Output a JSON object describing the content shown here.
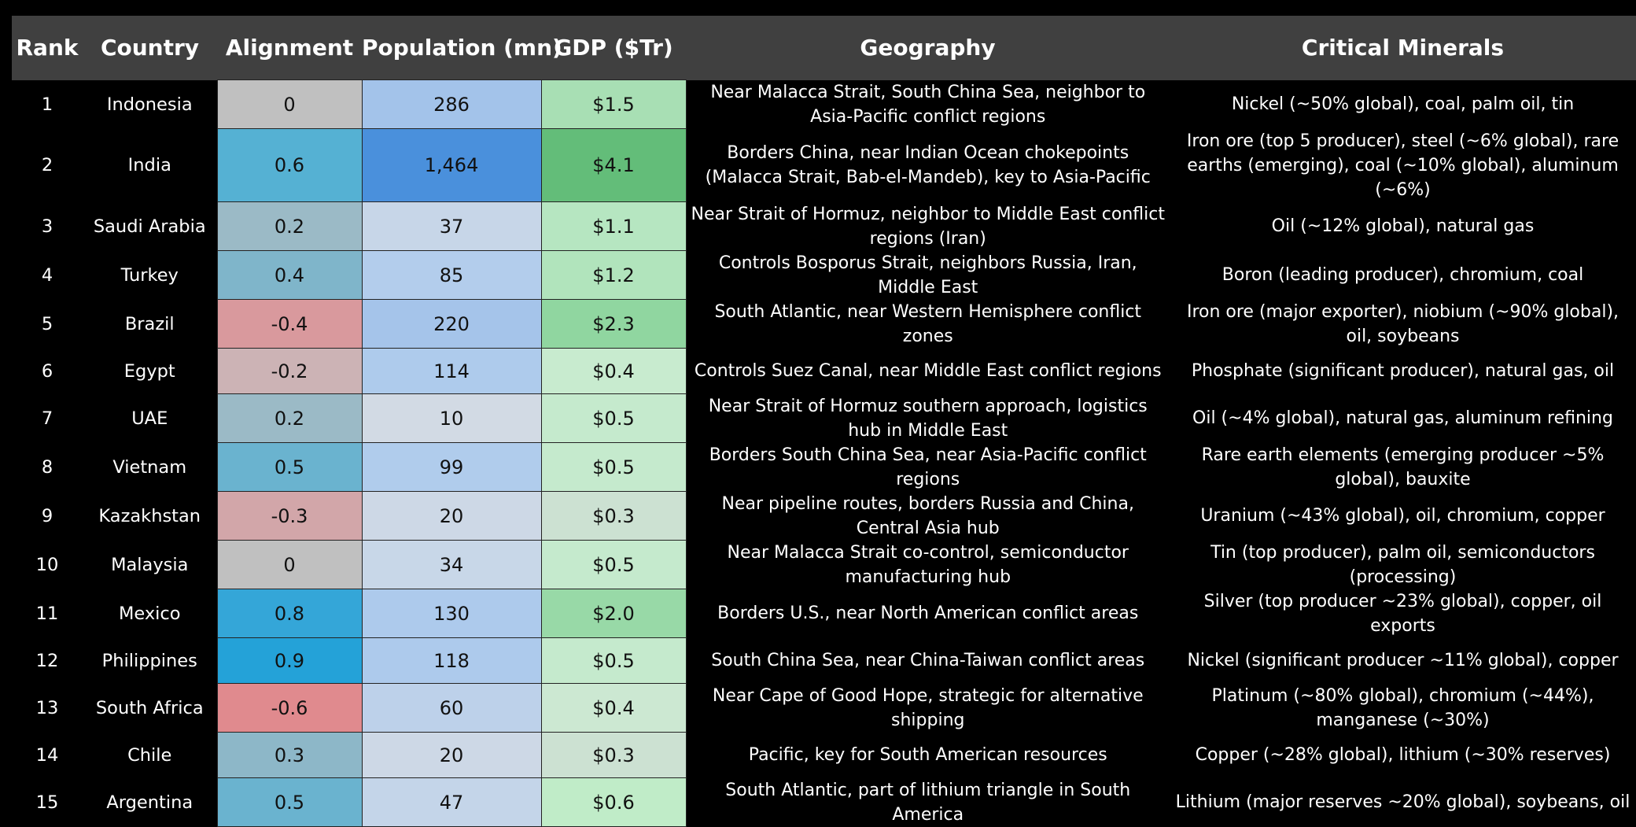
{
  "headers": [
    "Rank",
    "Country",
    "Alignment",
    "Population (mn)",
    "GDP ($Tr)",
    "Geography",
    "Critical Minerals"
  ],
  "rows": [
    {
      "rank": "1",
      "country": "Indonesia",
      "alignment": "0",
      "population": "286",
      "gdp": "$1.5",
      "geography": "Near Malacca Strait, South China Sea, neighbor to Asia-Pacific conflict regions",
      "minerals": "Nickel (~50% global), coal, palm oil, tin",
      "colors": {
        "alignment": "#c0c0c0",
        "population": "#a3c3ea",
        "gdp": "#a8dfb4"
      }
    },
    {
      "rank": "2",
      "country": "India",
      "alignment": "0.6",
      "population": "1,464",
      "gdp": "$4.1",
      "geography": "Borders China, near Indian Ocean chokepoints (Malacca Strait, Bab-el-Mandeb), key to Asia-Pacific",
      "minerals": "Iron ore (top 5 producer), steel (~6% global), rare earths (emerging), coal (~10% global), aluminum (~6%)",
      "colors": {
        "alignment": "#55b1d3",
        "population": "#4a90dc",
        "gdp": "#63bd79"
      }
    },
    {
      "rank": "3",
      "country": "Saudi Arabia",
      "alignment": "0.2",
      "population": "37",
      "gdp": "$1.1",
      "geography": "Near Strait of Hormuz, neighbor to Middle East conflict regions (Iran)",
      "minerals": "Oil (~12% global), natural gas",
      "colors": {
        "alignment": "#9bbac6",
        "population": "#c7d6e8",
        "gdp": "#b6e6c1"
      }
    },
    {
      "rank": "4",
      "country": "Turkey",
      "alignment": "0.4",
      "population": "85",
      "gdp": "$1.2",
      "geography": "Controls Bosporus Strait, neighbors Russia, Iran, Middle East",
      "minerals": "Boron (leading producer), chromium, coal",
      "colors": {
        "alignment": "#7fb5ca",
        "population": "#b3cdec",
        "gdp": "#b1e4bc"
      }
    },
    {
      "rank": "5",
      "country": "Brazil",
      "alignment": "-0.4",
      "population": "220",
      "gdp": "$2.3",
      "geography": "South Atlantic, near Western Hemisphere conflict zones",
      "minerals": "Iron ore (major exporter), niobium (~90% global), oil, soybeans",
      "colors": {
        "alignment": "#d9999d",
        "population": "#a5c4ea",
        "gdp": "#90d6a0"
      }
    },
    {
      "rank": "6",
      "country": "Egypt",
      "alignment": "-0.2",
      "population": "114",
      "gdp": "$0.4",
      "geography": "Controls Suez Canal, near Middle East conflict regions",
      "minerals": "Phosphate (significant producer), natural gas, oil",
      "colors": {
        "alignment": "#ccb3b5",
        "population": "#aecbec",
        "gdp": "#c8ebcf"
      }
    },
    {
      "rank": "7",
      "country": "UAE",
      "alignment": "0.2",
      "population": "10",
      "gdp": "$0.5",
      "geography": "Near Strait of Hormuz southern approach, logistics hub in Middle East",
      "minerals": "Oil (~4% global), natural gas, aluminum refining",
      "colors": {
        "alignment": "#9bbac6",
        "population": "#d2dae4",
        "gdp": "#c5eacd"
      }
    },
    {
      "rank": "8",
      "country": "Vietnam",
      "alignment": "0.5",
      "population": "99",
      "gdp": "$0.5",
      "geography": "Borders South China Sea, near Asia-Pacific conflict regions",
      "minerals": "Rare earth elements (emerging producer ~5% global), bauxite",
      "colors": {
        "alignment": "#6ab3cf",
        "population": "#b0ccec",
        "gdp": "#c5eacd"
      }
    },
    {
      "rank": "9",
      "country": "Kazakhstan",
      "alignment": "-0.3",
      "population": "20",
      "gdp": "$0.3",
      "geography": "Near pipeline routes, borders Russia and China, Central Asia hub",
      "minerals": "Uranium (~43% global), oil, chromium, copper",
      "colors": {
        "alignment": "#d2a6a9",
        "population": "#cdd8e6",
        "gdp": "#cce1d2"
      }
    },
    {
      "rank": "10",
      "country": "Malaysia",
      "alignment": "0",
      "population": "34",
      "gdp": "$0.5",
      "geography": "Near Malacca Strait co-control, semiconductor manufacturing hub",
      "minerals": "Tin (top producer), palm oil, semiconductors (processing)",
      "colors": {
        "alignment": "#c0c0c0",
        "population": "#c8d7e8",
        "gdp": "#c5eacd"
      }
    },
    {
      "rank": "11",
      "country": "Mexico",
      "alignment": "0.8",
      "population": "130",
      "gdp": "$2.0",
      "geography": "Borders U.S., near North American conflict areas",
      "minerals": "Silver (top producer ~23% global), copper, oil exports",
      "colors": {
        "alignment": "#34a6d8",
        "population": "#adcaec",
        "gdp": "#98d9a7"
      }
    },
    {
      "rank": "12",
      "country": "Philippines",
      "alignment": "0.9",
      "population": "118",
      "gdp": "$0.5",
      "geography": "South China Sea, near China-Taiwan conflict areas",
      "minerals": "Nickel (significant producer ~11% global), copper",
      "colors": {
        "alignment": "#24a2d8",
        "population": "#adcaec",
        "gdp": "#c5eacd"
      }
    },
    {
      "rank": "13",
      "country": "South Africa",
      "alignment": "-0.6",
      "population": "60",
      "gdp": "$0.4",
      "geography": "Near Cape of Good Hope, strategic for alternative shipping",
      "minerals": "Platinum (~80% global), chromium (~44%), manganese (~30%)",
      "colors": {
        "alignment": "#e08a8e",
        "population": "#bdd1ea",
        "gdp": "#cce8d2"
      }
    },
    {
      "rank": "14",
      "country": "Chile",
      "alignment": "0.3",
      "population": "20",
      "gdp": "$0.3",
      "geography": "Pacific, key for South American resources",
      "minerals": "Copper (~28% global), lithium (~30% reserves)",
      "colors": {
        "alignment": "#8db7c8",
        "population": "#cdd8e6",
        "gdp": "#cce1d2"
      }
    },
    {
      "rank": "15",
      "country": "Argentina",
      "alignment": "0.5",
      "population": "47",
      "gdp": "$0.6",
      "geography": "South Atlantic, part of lithium triangle in South America",
      "minerals": "Lithium (major reserves ~20% global), soybeans, oil",
      "colors": {
        "alignment": "#6ab3cf",
        "population": "#c4d5e9",
        "gdp": "#c0ecc8"
      }
    }
  ]
}
